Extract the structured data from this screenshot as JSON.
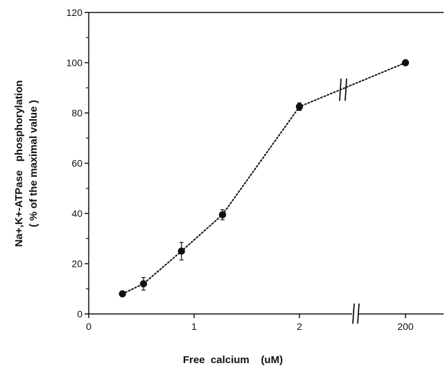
{
  "chart_data": {
    "type": "line",
    "xlabel": "Free  calcium    (uM)",
    "ylabel_line1": "Na+,K+-ATPase   phosphorylation",
    "ylabel_line2": "( % of the maximal value )",
    "x_ticks": [
      "0",
      "1",
      "2",
      "200"
    ],
    "y_ticks": [
      "0",
      "20",
      "40",
      "60",
      "80",
      "100",
      "120"
    ],
    "ylim": [
      0,
      120
    ],
    "xlim_linear_segment": [
      0,
      2
    ],
    "x_axis_break": "between 2 and 200",
    "grid": false,
    "series": [
      {
        "marker": "filled-circle",
        "line_style": "dotted",
        "points": [
          {
            "x": 0.32,
            "y": 8,
            "err": 0.5
          },
          {
            "x": 0.52,
            "y": 12,
            "err": 2.5
          },
          {
            "x": 0.88,
            "y": 25,
            "err": 3.5
          },
          {
            "x": 1.27,
            "y": 39.5,
            "err": 2
          },
          {
            "x": 2,
            "y": 82.5,
            "err": 1.5
          },
          {
            "x": 200,
            "y": 100,
            "err": 0
          }
        ]
      }
    ]
  }
}
